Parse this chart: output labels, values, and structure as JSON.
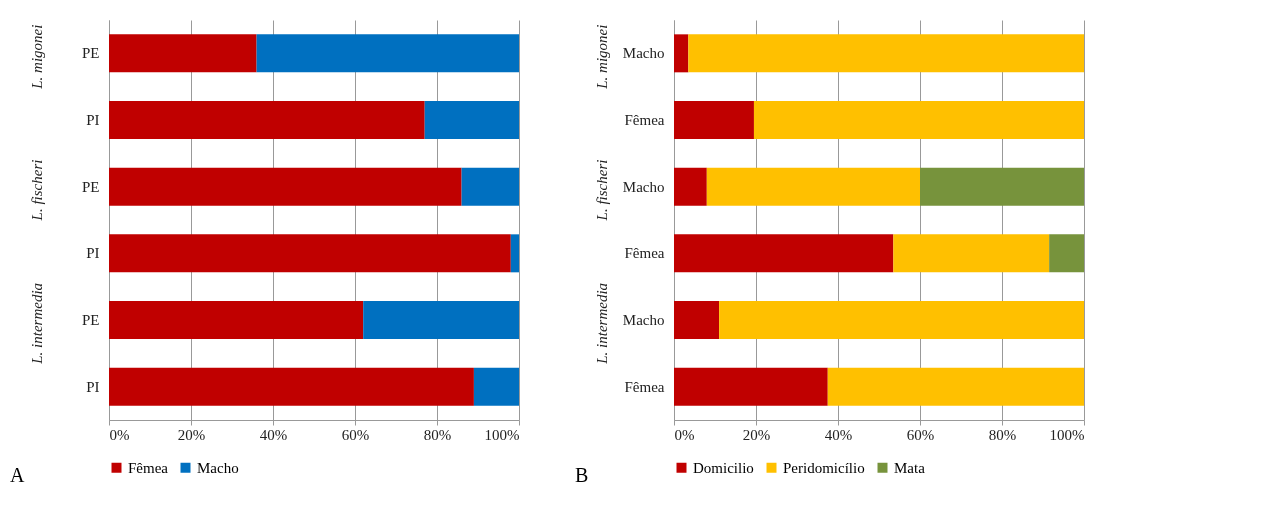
{
  "chart_data": [
    {
      "type": "bar",
      "orientation": "horizontal",
      "stacked": true,
      "title": "A",
      "categories": [
        "PE",
        "PI",
        "PE",
        "PI",
        "PE",
        "PI"
      ],
      "annotations": [
        "L. migonei",
        "L. fischeri",
        "L. intermedia"
      ],
      "series": [
        {
          "name": "Fêmea",
          "color": "#c00000",
          "values": [
            36,
            77,
            86,
            98,
            62,
            89
          ]
        },
        {
          "name": "Macho",
          "color": "#0070c0",
          "values": [
            64,
            23,
            14,
            2,
            38,
            11
          ]
        }
      ],
      "xlim": [
        0,
        100
      ],
      "xticks": [
        {
          "value": 0,
          "label": "0%"
        },
        {
          "value": 20,
          "label": "20%"
        },
        {
          "value": 40,
          "label": "40%"
        },
        {
          "value": 60,
          "label": "60%"
        },
        {
          "value": 80,
          "label": "80%"
        },
        {
          "value": 100,
          "label": "100%"
        }
      ],
      "grid": "x",
      "legend": "bottom"
    },
    {
      "type": "bar",
      "orientation": "horizontal",
      "stacked": true,
      "title": "B",
      "categories": [
        "Macho",
        "Fêmea",
        "Macho",
        "Fêmea",
        "Macho",
        "Fêmea"
      ],
      "annotations": [
        "L. migonei",
        "L. fischeri",
        "L. intermedia"
      ],
      "series": [
        {
          "name": "Domicilio",
          "color": "#c00000",
          "values": [
            3.5,
            19.5,
            8,
            53.5,
            11,
            37.5
          ]
        },
        {
          "name": "Peridomicílio",
          "color": "#ffc000",
          "values": [
            96.5,
            80.5,
            52,
            38,
            89,
            62.5
          ]
        },
        {
          "name": "Mata",
          "color": "#77933c",
          "values": [
            0,
            0,
            40,
            8.5,
            0,
            0
          ]
        }
      ],
      "xlim": [
        0,
        100
      ],
      "xticks": [
        {
          "value": 0,
          "label": "0%"
        },
        {
          "value": 20,
          "label": "20%"
        },
        {
          "value": 40,
          "label": "40%"
        },
        {
          "value": 60,
          "label": "60%"
        },
        {
          "value": 80,
          "label": "80%"
        },
        {
          "value": 100,
          "label": "100%"
        }
      ],
      "grid": "x",
      "legend": "bottom"
    }
  ]
}
